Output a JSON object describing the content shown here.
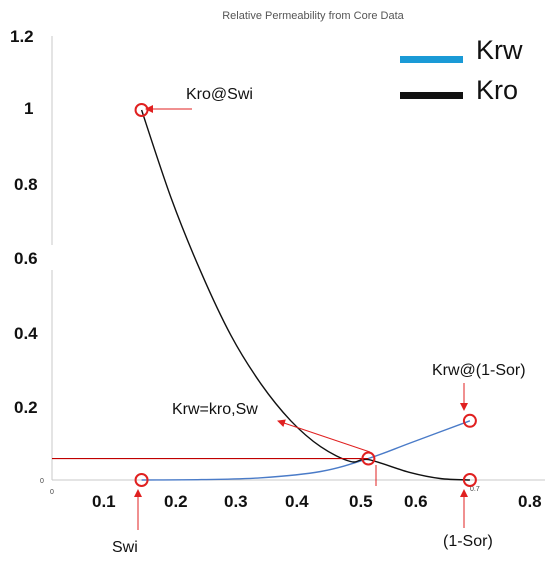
{
  "chart_data": {
    "type": "line",
    "title": "Relative Permeability from Core Data",
    "xlabel": "",
    "ylabel": "",
    "xlim": [
      0,
      0.8
    ],
    "ylim": [
      0,
      1.2
    ],
    "y_ticks": [
      "1.2",
      "1",
      "0.8",
      "0.6",
      "0.4",
      "0.2",
      "0"
    ],
    "x_ticks": [
      "0.1",
      "0.2",
      "0.3",
      "0.4",
      "0.5",
      "0.6",
      "0.7",
      "0.8"
    ],
    "x_tick_origin": "0",
    "grid": false,
    "legend_position": "top-right",
    "series": [
      {
        "name": "Krw",
        "color": "#1a9ad6",
        "x": [
          0.15,
          0.25,
          0.35,
          0.45,
          0.53,
          0.6,
          0.7
        ],
        "y": [
          0.0,
          0.001,
          0.006,
          0.023,
          0.058,
          0.1,
          0.16
        ]
      },
      {
        "name": "Kro",
        "color": "#111111",
        "x": [
          0.15,
          0.2,
          0.25,
          0.3,
          0.35,
          0.4,
          0.45,
          0.5,
          0.53,
          0.6,
          0.65,
          0.7
        ],
        "y": [
          1.0,
          0.76,
          0.56,
          0.39,
          0.26,
          0.16,
          0.09,
          0.05,
          0.055,
          0.02,
          0.004,
          0.0
        ]
      }
    ],
    "markers": [
      {
        "name": "Kro@Swi",
        "x": 0.15,
        "y": 1.0
      },
      {
        "name": "Swi",
        "x": 0.15,
        "y": 0.0
      },
      {
        "name": "Krw=kro,Sw",
        "x": 0.53,
        "y": 0.058
      },
      {
        "name": "Krw@(1-Sor)",
        "x": 0.7,
        "y": 0.16
      },
      {
        "name": "(1-Sor)",
        "x": 0.7,
        "y": 0.0
      }
    ],
    "annotations": {
      "kro_swi": "Kro@Swi",
      "swi": "Swi",
      "krw_eq_kro": "Krw=kro,Sw",
      "krw_1sor": "Krw@(1-Sor)",
      "one_minus_sor": "(1-Sor)"
    },
    "colors": {
      "marker": "#e02020",
      "annotation_arrow": "#e02020",
      "guide_line": "#c00000"
    }
  }
}
